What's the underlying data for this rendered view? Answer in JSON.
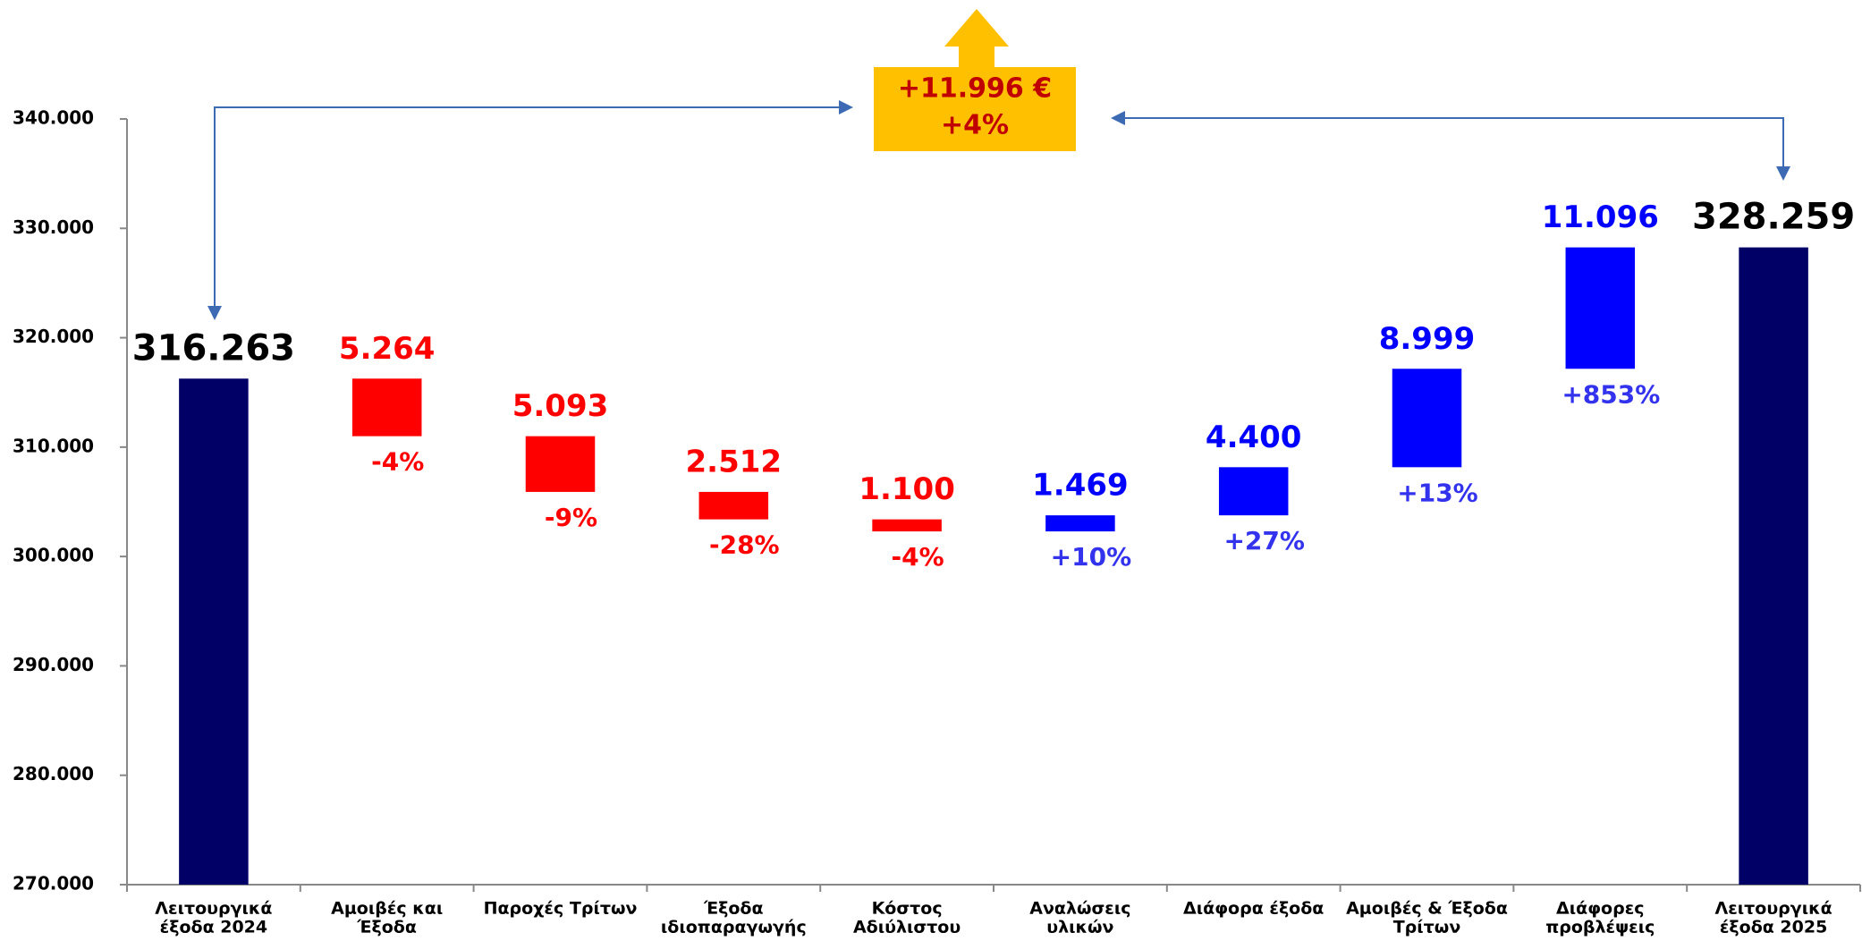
{
  "chart_data": {
    "type": "waterfall",
    "categories": [
      [
        "Λειτουργικά",
        "έξοδα 2024"
      ],
      [
        "Αμοιβές και",
        "Έξοδα"
      ],
      [
        "Παροχές  Τρίτων"
      ],
      [
        "Έξοδα",
        "ιδιοπαραγωγής"
      ],
      [
        "Κόστος",
        "Αδιύλιστου"
      ],
      [
        "Αναλώσεις",
        "υλικών"
      ],
      [
        "Διάφορα έξοδα"
      ],
      [
        "Αμοιβές & Έξοδα",
        "Τρίτων"
      ],
      [
        "Διάφορες",
        "προβλέψεις"
      ],
      [
        "Λειτουργικά",
        "έξοδα 2025"
      ]
    ],
    "values": [
      316263,
      -5264,
      -5093,
      -2512,
      -1100,
      1469,
      4400,
      8999,
      11096,
      328259
    ],
    "value_labels": [
      "316.263",
      "5.264",
      "5.093",
      "2.512",
      "1.100",
      "1.469",
      "4.400",
      "8.999",
      "11.096",
      "328.259"
    ],
    "percent_labels": [
      null,
      "-4%",
      "-9%",
      "-28%",
      "-4%",
      "+10%",
      "+27%",
      "+13%",
      "+853%",
      null
    ],
    "is_total": [
      true,
      false,
      false,
      false,
      false,
      false,
      false,
      false,
      false,
      true
    ],
    "total_color": "#000066",
    "decrease_color": "#ff0000",
    "increase_color": "#0000ff",
    "decrease_label_color": "#ff0000",
    "increase_label_color": "#3333ee",
    "ylim": [
      270000,
      340000
    ],
    "yticks": [
      {
        "value": 270000,
        "label": "270.000"
      },
      {
        "value": 280000,
        "label": "280.000"
      },
      {
        "value": 290000,
        "label": "290.000"
      },
      {
        "value": 300000,
        "label": "300.000"
      },
      {
        "value": 310000,
        "label": "310.000"
      },
      {
        "value": 320000,
        "label": "320.000"
      },
      {
        "value": 330000,
        "label": "330.000"
      },
      {
        "value": 340000,
        "label": "340.000"
      }
    ],
    "annotation": [
      "+11.996 €",
      "+4%"
    ]
  }
}
